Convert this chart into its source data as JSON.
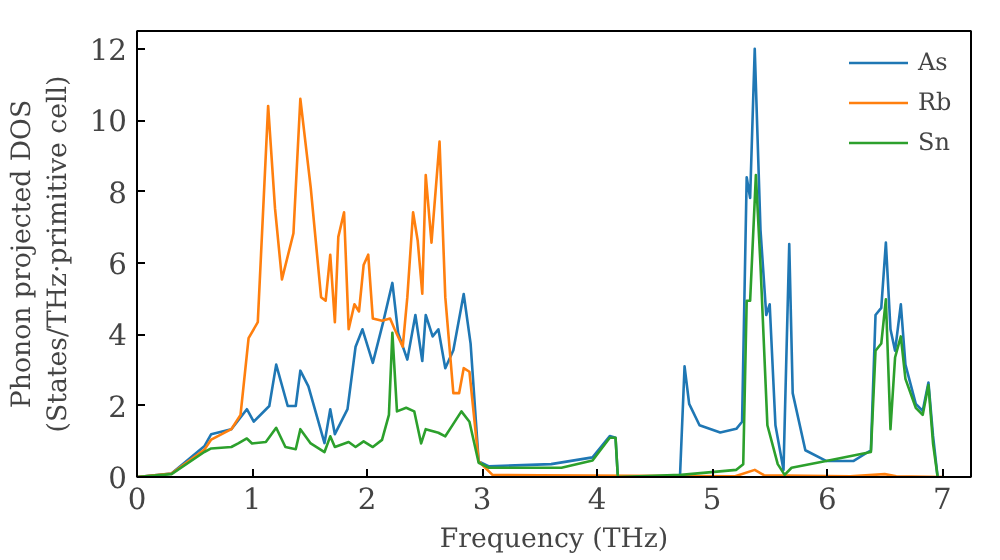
{
  "chart_data": {
    "type": "line",
    "xlabel": "Frequency (THz)",
    "ylabel": "Phonon projected DOS\n(States/THz·primitive cell)",
    "xlim": [
      0,
      7.25
    ],
    "ylim": [
      0,
      12.5
    ],
    "xticks": [
      0,
      1,
      2,
      3,
      4,
      5,
      6,
      7
    ],
    "yticks": [
      0,
      2,
      4,
      6,
      8,
      10,
      12
    ],
    "grid": false,
    "legend": "top right",
    "series": [
      {
        "name": "As",
        "color": "#1f77b4",
        "x": [
          0,
          0.3,
          0.585,
          0.645,
          0.82,
          0.955,
          1.015,
          1.15,
          1.21,
          1.31,
          1.38,
          1.42,
          1.49,
          1.63,
          1.68,
          1.72,
          1.83,
          1.9,
          1.96,
          2.05,
          2.14,
          2.22,
          2.27,
          2.35,
          2.42,
          2.48,
          2.51,
          2.57,
          2.62,
          2.68,
          2.75,
          2.84,
          2.9,
          2.97,
          3.06,
          3.6,
          3.96,
          4.11,
          4.16,
          4.18,
          4.72,
          4.76,
          4.8,
          4.89,
          5.07,
          5.21,
          5.26,
          5.3,
          5.33,
          5.37,
          5.42,
          5.47,
          5.5,
          5.55,
          5.62,
          5.67,
          5.7,
          5.81,
          5.99,
          6.23,
          6.38,
          6.42,
          6.47,
          6.51,
          6.55,
          6.59,
          6.64,
          6.68,
          6.77,
          6.83,
          6.88,
          6.92,
          6.96
        ],
        "values": [
          0,
          0.1,
          0.86,
          1.2,
          1.34,
          1.9,
          1.55,
          1.99,
          3.15,
          1.99,
          1.99,
          2.98,
          2.54,
          0.95,
          1.9,
          1.2,
          1.9,
          3.65,
          4.14,
          3.2,
          4.34,
          5.44,
          4.04,
          3.29,
          4.54,
          3.25,
          4.54,
          3.94,
          4.14,
          3.05,
          3.55,
          5.13,
          3.74,
          0.44,
          0.3,
          0.36,
          0.55,
          1.15,
          1.1,
          0,
          0,
          3.1,
          2.05,
          1.45,
          1.25,
          1.35,
          1.55,
          8.4,
          7.82,
          12.0,
          6.93,
          4.54,
          4.84,
          1.45,
          0.2,
          6.53,
          2.35,
          0.75,
          0.45,
          0.45,
          0.75,
          4.54,
          4.74,
          6.57,
          4.14,
          3.54,
          4.84,
          3.15,
          2.05,
          1.85,
          2.65,
          1.15,
          0
        ]
      },
      {
        "name": "Rb",
        "color": "#ff7f0e",
        "x": [
          0,
          0.3,
          0.585,
          0.645,
          0.82,
          0.9,
          0.97,
          1.05,
          1.14,
          1.2,
          1.26,
          1.36,
          1.42,
          1.51,
          1.6,
          1.64,
          1.68,
          1.72,
          1.75,
          1.8,
          1.84,
          1.89,
          1.93,
          1.97,
          2.01,
          2.05,
          2.13,
          2.2,
          2.24,
          2.31,
          2.35,
          2.4,
          2.44,
          2.48,
          2.51,
          2.56,
          2.63,
          2.68,
          2.75,
          2.8,
          2.84,
          2.89,
          2.97,
          3.09,
          3.5,
          5.2,
          5.37,
          5.45,
          6.2,
          6.5,
          6.6,
          7.0
        ],
        "values": [
          0,
          0.1,
          0.76,
          1.05,
          1.34,
          1.74,
          3.89,
          4.34,
          10.4,
          7.52,
          5.54,
          6.83,
          10.6,
          8.12,
          5.04,
          4.94,
          6.23,
          4.34,
          6.73,
          7.42,
          4.14,
          4.84,
          4.64,
          5.94,
          6.23,
          4.44,
          4.38,
          4.44,
          4.14,
          3.65,
          5.04,
          7.42,
          6.63,
          5.14,
          8.46,
          6.57,
          9.4,
          5.04,
          2.35,
          2.35,
          3.05,
          2.95,
          0.44,
          0.06,
          0.05,
          0.02,
          0.2,
          0.05,
          0.02,
          0.08,
          0.02,
          0
        ]
      },
      {
        "name": "Sn",
        "color": "#2ca02c",
        "x": [
          0,
          0.3,
          0.585,
          0.645,
          0.82,
          0.88,
          0.955,
          1.0,
          1.12,
          1.21,
          1.29,
          1.38,
          1.42,
          1.51,
          1.63,
          1.68,
          1.72,
          1.84,
          1.9,
          1.97,
          2.05,
          2.13,
          2.19,
          2.22,
          2.26,
          2.34,
          2.41,
          2.47,
          2.51,
          2.62,
          2.68,
          2.74,
          2.82,
          2.89,
          2.97,
          3.06,
          3.69,
          3.96,
          4.11,
          4.16,
          4.18,
          4.73,
          5.21,
          5.27,
          5.3,
          5.33,
          5.38,
          5.42,
          5.48,
          5.57,
          5.63,
          5.69,
          5.99,
          6.38,
          6.42,
          6.47,
          6.51,
          6.55,
          6.59,
          6.64,
          6.68,
          6.77,
          6.83,
          6.88,
          6.92,
          6.96
        ],
        "values": [
          0,
          0.08,
          0.7,
          0.8,
          0.84,
          0.94,
          1.08,
          0.94,
          0.98,
          1.38,
          0.84,
          0.78,
          1.34,
          0.94,
          0.7,
          1.14,
          0.84,
          0.98,
          0.84,
          1.0,
          0.84,
          1.04,
          1.74,
          4.04,
          1.84,
          1.94,
          1.84,
          0.94,
          1.34,
          1.24,
          1.14,
          1.44,
          1.84,
          1.55,
          0.4,
          0.26,
          0.26,
          0.46,
          1.1,
          1.1,
          0,
          0.06,
          0.2,
          0.36,
          4.94,
          4.94,
          8.46,
          5.94,
          1.45,
          0.36,
          0.06,
          0.26,
          0.45,
          0.7,
          3.54,
          3.74,
          4.98,
          1.34,
          3.35,
          3.94,
          2.75,
          1.94,
          1.74,
          2.58,
          0.94,
          0
        ]
      }
    ]
  }
}
